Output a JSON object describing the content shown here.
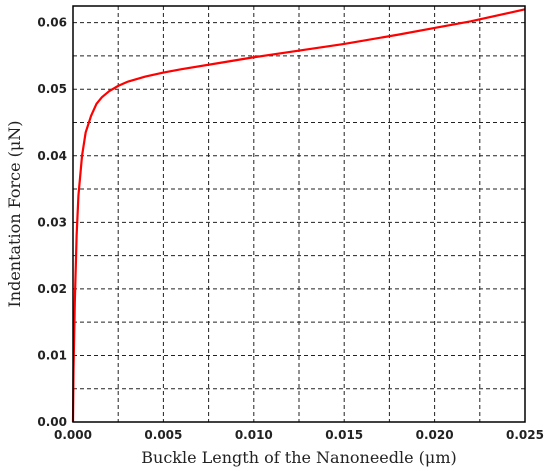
{
  "chart_data": {
    "type": "line",
    "title": "",
    "xlabel": "Buckle Length of the Nanoneedle (μm)",
    "ylabel": "Indentation Force (μN)",
    "xlim": [
      0,
      0.025
    ],
    "ylim": [
      0,
      0.0625
    ],
    "x_ticks": [
      0,
      0.005,
      0.01,
      0.015,
      0.02,
      0.025
    ],
    "x_tick_labels": [
      "0.000",
      "0.005",
      "0.010",
      "0.015",
      "0.020",
      "0.025"
    ],
    "y_ticks": [
      0,
      0.01,
      0.02,
      0.03,
      0.04,
      0.05,
      0.06
    ],
    "y_tick_labels": [
      "0.00",
      "0.01",
      "0.02",
      "0.03",
      "0.04",
      "0.05",
      "0.06"
    ],
    "grid": true,
    "grid_style": "dashed",
    "legend": "none",
    "series": [
      {
        "color": "#ff0000",
        "x": [
          0,
          3e-05,
          0.0001,
          0.0002,
          0.0003,
          0.0005,
          0.0007,
          0.001,
          0.0013,
          0.0016,
          0.002,
          0.0025,
          0.003,
          0.004,
          0.005,
          0.006,
          0.008,
          0.01,
          0.012,
          0.015,
          0.018,
          0.02,
          0.022,
          0.025
        ],
        "y": [
          0,
          0.008,
          0.018,
          0.028,
          0.034,
          0.04,
          0.0435,
          0.046,
          0.0478,
          0.0488,
          0.0497,
          0.0505,
          0.0511,
          0.0519,
          0.0525,
          0.053,
          0.0539,
          0.0548,
          0.0556,
          0.0568,
          0.0582,
          0.0592,
          0.0602,
          0.062
        ]
      }
    ]
  }
}
